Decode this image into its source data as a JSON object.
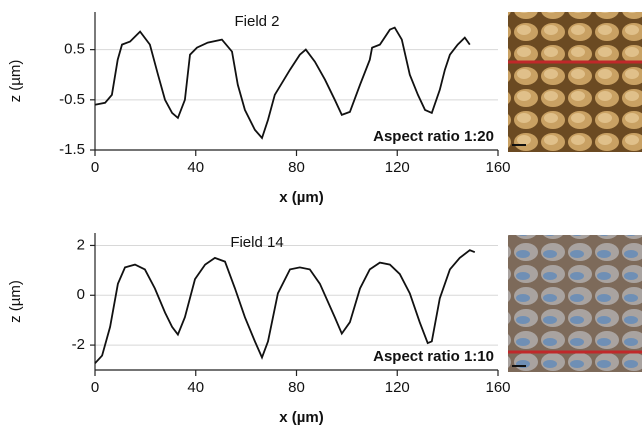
{
  "chart_data": [
    {
      "type": "line",
      "title": "Field 2",
      "annotation": "Aspect ratio 1:20",
      "x_label": "x (µm)",
      "y_label": "z (µm)",
      "color": "#111111",
      "grid": true,
      "xlim": [
        0,
        160
      ],
      "xticks": [
        0,
        40,
        80,
        120,
        160
      ],
      "ylim": [
        -1.5,
        1.25
      ],
      "yticks": [
        -1.5,
        -0.5,
        0.5
      ],
      "x": [
        0,
        4,
        6.7,
        9,
        10.7,
        13.9,
        17.9,
        21.8,
        25,
        27.8,
        30.6,
        32.9,
        35.7,
        37.7,
        40.5,
        44.8,
        50.4,
        54.4,
        56.7,
        59.5,
        63.5,
        66.3,
        68.7,
        71.4,
        77.4,
        81.3,
        83.7,
        87.3,
        91.3,
        95.2,
        98,
        101.2,
        105.2,
        109.1,
        110,
        113.1,
        117.1,
        119,
        121.8,
        125,
        128.2,
        131,
        133.7,
        136.9,
        138.9,
        140.9,
        144,
        146.8,
        148.8
      ],
      "values": [
        -0.6,
        -0.56,
        -0.4,
        0.3,
        0.6,
        0.66,
        0.86,
        0.6,
        0,
        -0.5,
        -0.76,
        -0.86,
        -0.5,
        0.4,
        0.54,
        0.64,
        0.7,
        0.46,
        -0.2,
        -0.7,
        -1.1,
        -1.26,
        -0.9,
        -0.4,
        0.1,
        0.4,
        0.5,
        0.26,
        -0.1,
        -0.5,
        -0.8,
        -0.74,
        -0.2,
        0.3,
        0.54,
        0.6,
        0.9,
        0.94,
        0.7,
        0,
        -0.4,
        -0.7,
        -0.76,
        -0.3,
        0.1,
        0.4,
        0.6,
        0.74,
        0.6
      ]
    },
    {
      "type": "line",
      "title": "Field 14",
      "annotation": "Aspect ratio 1:10",
      "x_label": "x (µm)",
      "y_label": "z (µm)",
      "color": "#111111",
      "grid": true,
      "xlim": [
        0,
        160
      ],
      "xticks": [
        0,
        40,
        80,
        120,
        160
      ],
      "ylim": [
        -3,
        2.5
      ],
      "yticks": [
        -2,
        0,
        2
      ],
      "x": [
        0,
        2.8,
        6,
        9.1,
        11.9,
        15.9,
        19.8,
        23.8,
        27.8,
        30.6,
        32.9,
        35.7,
        39.7,
        43.7,
        47.6,
        51.6,
        55.6,
        59.5,
        63.5,
        66.3,
        68.7,
        72.6,
        77.4,
        81.3,
        85.3,
        89.3,
        95.2,
        98,
        101.2,
        105.2,
        109.1,
        113.1,
        117.1,
        121,
        125,
        128.9,
        132.1,
        133.7,
        136.9,
        140.9,
        144.8,
        148.8,
        150.8
      ],
      "values": [
        -2.73,
        -2.42,
        -1.27,
        0.46,
        1.12,
        1.23,
        1.04,
        0.27,
        -0.69,
        -1.27,
        -1.58,
        -0.88,
        0.65,
        1.23,
        1.5,
        1.35,
        0.27,
        -0.88,
        -1.85,
        -2.5,
        -1.85,
        0.08,
        1.04,
        1.12,
        1.04,
        0.46,
        -0.88,
        -1.54,
        -1.08,
        0.27,
        1.04,
        1.31,
        1.23,
        0.85,
        0.08,
        -1.08,
        -1.92,
        -1.85,
        -0.12,
        1.04,
        1.5,
        1.81,
        1.73
      ]
    }
  ]
}
